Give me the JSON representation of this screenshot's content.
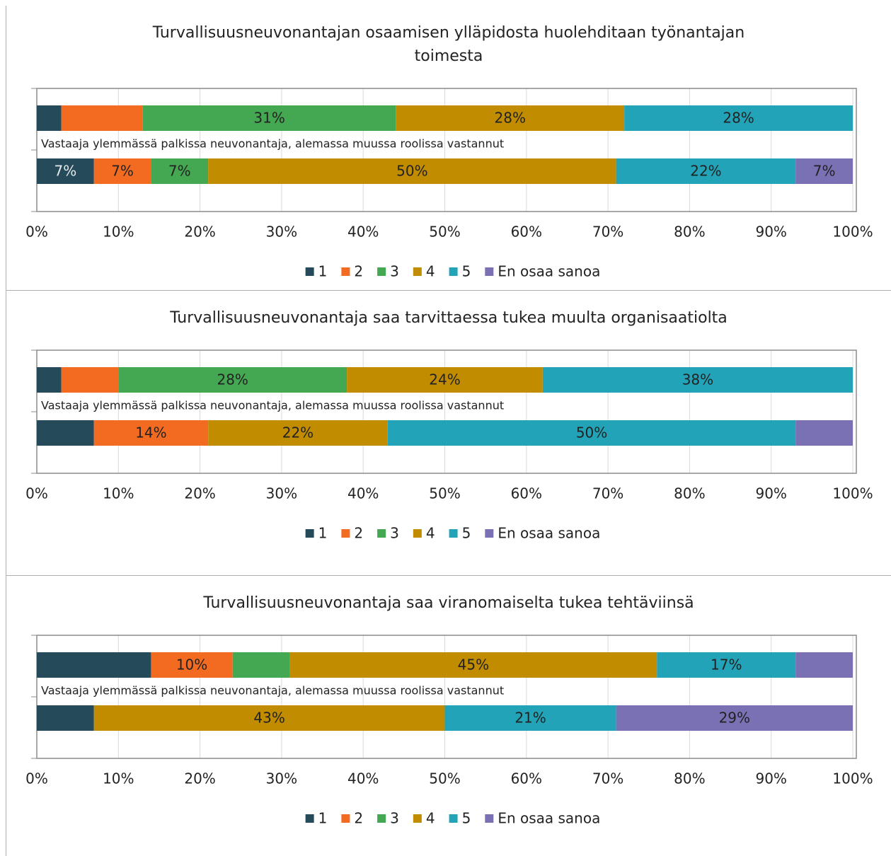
{
  "chart_data": [
    {
      "type": "bar",
      "orientation": "horizontal",
      "stacked": true,
      "title": "Turvallisuusneuvonantajan osaamisen ylläpidosta huolehditaan työnantajan toimesta",
      "annotation": "Vastaaja ylemmässä palkissa neuvonantaja, alemassa muussa roolissa vastannut",
      "categories": [
        null,
        null
      ],
      "series": [
        {
          "name": "1",
          "color": "#254b5a",
          "values": [
            3,
            7
          ],
          "value_labels": [
            null,
            "7%"
          ]
        },
        {
          "name": "2",
          "color": "#f26b21",
          "values": [
            10,
            7
          ],
          "value_labels": [
            null,
            "7%"
          ]
        },
        {
          "name": "3",
          "color": "#44a752",
          "values": [
            31,
            7
          ],
          "value_labels": [
            "31%",
            "7%"
          ]
        },
        {
          "name": "4",
          "color": "#c18c00",
          "values": [
            28,
            50
          ],
          "value_labels": [
            "28%",
            "50%"
          ]
        },
        {
          "name": "5",
          "color": "#23a3b7",
          "values": [
            28,
            22
          ],
          "value_labels": [
            "28%",
            "22%"
          ]
        },
        {
          "name": "En osaa sanoa",
          "color": "#7a70b4",
          "values": [
            0,
            7
          ],
          "value_labels": [
            null,
            "7%"
          ]
        }
      ],
      "xlim": [
        0,
        100
      ],
      "xticks": [
        {
          "value": 0,
          "label": "0%"
        },
        {
          "value": 10,
          "label": "10%"
        },
        {
          "value": 20,
          "label": "20%"
        },
        {
          "value": 30,
          "label": "30%"
        },
        {
          "value": 40,
          "label": "40%"
        },
        {
          "value": 50,
          "label": "50%"
        },
        {
          "value": 60,
          "label": "60%"
        },
        {
          "value": 70,
          "label": "70%"
        },
        {
          "value": 80,
          "label": "80%"
        },
        {
          "value": 90,
          "label": "90%"
        },
        {
          "value": 100,
          "label": "100%"
        }
      ],
      "grid": true,
      "legend": "bottom"
    },
    {
      "type": "bar",
      "orientation": "horizontal",
      "stacked": true,
      "title": "Turvallisuusneuvonantaja saa tarvittaessa tukea muulta organisaatiolta",
      "annotation": "Vastaaja ylemmässä palkissa neuvonantaja, alemassa muussa roolissa vastannut",
      "categories": [
        null,
        null
      ],
      "series": [
        {
          "name": "1",
          "color": "#254b5a",
          "values": [
            3,
            7
          ],
          "value_labels": [
            null,
            null
          ]
        },
        {
          "name": "2",
          "color": "#f26b21",
          "values": [
            7,
            14
          ],
          "value_labels": [
            null,
            "14%"
          ]
        },
        {
          "name": "3",
          "color": "#44a752",
          "values": [
            28,
            0
          ],
          "value_labels": [
            "28%",
            null
          ]
        },
        {
          "name": "4",
          "color": "#c18c00",
          "values": [
            24,
            22
          ],
          "value_labels": [
            "24%",
            "22%"
          ]
        },
        {
          "name": "5",
          "color": "#23a3b7",
          "values": [
            38,
            50
          ],
          "value_labels": [
            "38%",
            "50%"
          ]
        },
        {
          "name": "En osaa sanoa",
          "color": "#7a70b4",
          "values": [
            0,
            7
          ],
          "value_labels": [
            null,
            null
          ]
        }
      ],
      "xlim": [
        0,
        100
      ],
      "xticks": [
        {
          "value": 0,
          "label": "0%"
        },
        {
          "value": 10,
          "label": "10%"
        },
        {
          "value": 20,
          "label": "20%"
        },
        {
          "value": 30,
          "label": "30%"
        },
        {
          "value": 40,
          "label": "40%"
        },
        {
          "value": 50,
          "label": "50%"
        },
        {
          "value": 60,
          "label": "60%"
        },
        {
          "value": 70,
          "label": "70%"
        },
        {
          "value": 80,
          "label": "80%"
        },
        {
          "value": 90,
          "label": "90%"
        },
        {
          "value": 100,
          "label": "100%"
        }
      ],
      "grid": true,
      "legend": "bottom"
    },
    {
      "type": "bar",
      "orientation": "horizontal",
      "stacked": true,
      "title": "Turvallisuusneuvonantaja saa viranomaiselta tukea tehtäviinsä",
      "annotation": "Vastaaja ylemmässä palkissa neuvonantaja, alemassa muussa roolissa vastannut",
      "categories": [
        null,
        null
      ],
      "series": [
        {
          "name": "1",
          "color": "#254b5a",
          "values": [
            14,
            7
          ],
          "value_labels": [
            null,
            null
          ]
        },
        {
          "name": "2",
          "color": "#f26b21",
          "values": [
            10,
            0
          ],
          "value_labels": [
            "10%",
            null
          ]
        },
        {
          "name": "3",
          "color": "#44a752",
          "values": [
            7,
            0
          ],
          "value_labels": [
            null,
            null
          ]
        },
        {
          "name": "4",
          "color": "#c18c00",
          "values": [
            45,
            43
          ],
          "value_labels": [
            "45%",
            "43%"
          ]
        },
        {
          "name": "5",
          "color": "#23a3b7",
          "values": [
            17,
            21
          ],
          "value_labels": [
            "17%",
            "21%"
          ]
        },
        {
          "name": "En osaa sanoa",
          "color": "#7a70b4",
          "values": [
            7,
            29
          ],
          "value_labels": [
            null,
            "29%"
          ]
        }
      ],
      "xlim": [
        0,
        100
      ],
      "xticks": [
        {
          "value": 0,
          "label": "0%"
        },
        {
          "value": 10,
          "label": "10%"
        },
        {
          "value": 20,
          "label": "20%"
        },
        {
          "value": 30,
          "label": "30%"
        },
        {
          "value": 40,
          "label": "40%"
        },
        {
          "value": 50,
          "label": "50%"
        },
        {
          "value": 60,
          "label": "60%"
        },
        {
          "value": 70,
          "label": "70%"
        },
        {
          "value": 80,
          "label": "80%"
        },
        {
          "value": 90,
          "label": "90%"
        },
        {
          "value": 100,
          "label": "100%"
        }
      ],
      "grid": true,
      "legend": "bottom"
    }
  ]
}
